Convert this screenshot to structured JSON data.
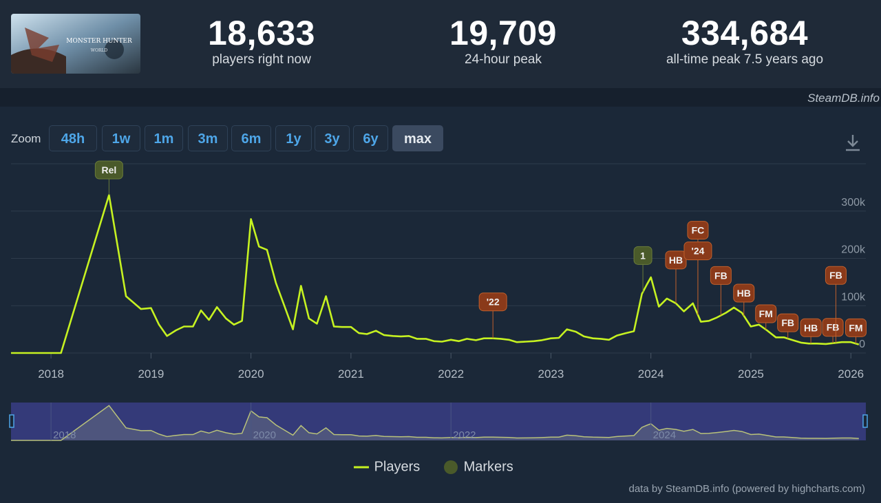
{
  "header": {
    "game_capsule": {
      "title_text": "MONSTER HUNTER",
      "subtitle_text": "WORLD"
    },
    "stats": [
      {
        "value": "18,633",
        "label": "players right now"
      },
      {
        "value": "19,709",
        "label": "24-hour peak"
      },
      {
        "value": "334,684",
        "label": "all-time peak 7.5 years ago"
      }
    ]
  },
  "credit_top": "SteamDB.info",
  "zoom": {
    "label": "Zoom",
    "buttons": [
      "48h",
      "1w",
      "1m",
      "3m",
      "6m",
      "1y",
      "3y",
      "6y",
      "max"
    ],
    "active": "max"
  },
  "download_icon": "download-icon",
  "colors": {
    "line": "#c6f221",
    "marker_green": "#4a5a2a",
    "marker_orange": "#8a3a1a",
    "navigator_fill": "#3a3f8a",
    "accent_blue": "#4ea6e8"
  },
  "chart_data": {
    "type": "line",
    "x_unit": "year",
    "y_unit": "players",
    "xlim": [
      2017.6,
      2026.15
    ],
    "ylim": [
      0,
      400000
    ],
    "y_ticks": [
      0,
      100000,
      200000,
      300000
    ],
    "y_tick_labels": [
      "0",
      "100k",
      "200k",
      "300k"
    ],
    "x_ticks": [
      2018,
      2019,
      2020,
      2021,
      2022,
      2023,
      2024,
      2025,
      2026
    ],
    "x_tick_labels": [
      "2018",
      "2019",
      "2020",
      "2021",
      "2022",
      "2023",
      "2024",
      "2025",
      "2026"
    ],
    "grid": true,
    "legend": "bottom-center",
    "series": [
      {
        "name": "Players",
        "x": [
          2017.6,
          2018.1,
          2018.58,
          2018.75,
          2018.9,
          2019.0,
          2019.08,
          2019.16,
          2019.25,
          2019.33,
          2019.42,
          2019.5,
          2019.58,
          2019.66,
          2019.75,
          2019.83,
          2019.91,
          2020.0,
          2020.08,
          2020.16,
          2020.25,
          2020.33,
          2020.42,
          2020.5,
          2020.58,
          2020.66,
          2020.75,
          2020.83,
          2020.91,
          2021.0,
          2021.08,
          2021.16,
          2021.25,
          2021.33,
          2021.42,
          2021.5,
          2021.58,
          2021.66,
          2021.75,
          2021.83,
          2021.91,
          2022.0,
          2022.08,
          2022.16,
          2022.25,
          2022.33,
          2022.42,
          2022.5,
          2022.58,
          2022.66,
          2022.75,
          2022.83,
          2022.91,
          2023.0,
          2023.08,
          2023.16,
          2023.25,
          2023.33,
          2023.42,
          2023.5,
          2023.58,
          2023.66,
          2023.75,
          2023.83,
          2023.91,
          2023.96,
          2024.0,
          2024.08,
          2024.16,
          2024.25,
          2024.33,
          2024.42,
          2024.5,
          2024.58,
          2024.66,
          2024.75,
          2024.83,
          2024.91,
          2025.0,
          2025.08,
          2025.16,
          2025.25,
          2025.33,
          2025.42,
          2025.5,
          2025.58,
          2025.66,
          2025.75,
          2025.83,
          2025.91,
          2026.0,
          2026.08
        ],
        "y": [
          0,
          0,
          334000,
          120000,
          93000,
          95000,
          60000,
          36000,
          48000,
          56000,
          56000,
          90000,
          70000,
          97000,
          73000,
          60000,
          68000,
          283000,
          225000,
          218000,
          148000,
          102000,
          50000,
          142000,
          73000,
          62000,
          120000,
          56000,
          55000,
          55000,
          42000,
          40000,
          47000,
          38000,
          36000,
          35000,
          36000,
          30000,
          30000,
          25000,
          24000,
          28000,
          25000,
          30000,
          27000,
          31000,
          31000,
          30000,
          28000,
          23000,
          24000,
          25000,
          27000,
          31000,
          32000,
          50000,
          45000,
          35000,
          31000,
          30000,
          28000,
          37000,
          42000,
          46000,
          125000,
          145000,
          160000,
          98000,
          115000,
          105000,
          88000,
          105000,
          66000,
          68000,
          75000,
          85000,
          96000,
          85000,
          56000,
          60000,
          48000,
          33000,
          33000,
          27000,
          22000,
          20000,
          20000,
          19000,
          21000,
          23000,
          23000,
          18000
        ]
      }
    ],
    "markers": [
      {
        "label": "Rel",
        "x": 2018.58,
        "color": "green"
      },
      {
        "label": "1",
        "x": 2023.92,
        "color": "green"
      },
      {
        "label": "'22",
        "x": 2022.42,
        "color": "orange"
      },
      {
        "label": "FC",
        "x": 2024.47,
        "color": "orange"
      },
      {
        "label": "HB",
        "x": 2024.25,
        "color": "orange"
      },
      {
        "label": "'24",
        "x": 2024.47,
        "color": "orange"
      },
      {
        "label": "FB",
        "x": 2024.7,
        "color": "orange"
      },
      {
        "label": "HB",
        "x": 2024.93,
        "color": "orange"
      },
      {
        "label": "FM",
        "x": 2025.15,
        "color": "orange"
      },
      {
        "label": "FB",
        "x": 2025.37,
        "color": "orange"
      },
      {
        "label": "HB",
        "x": 2025.6,
        "color": "orange"
      },
      {
        "label": "FB",
        "x": 2025.82,
        "color": "orange"
      },
      {
        "label": "FB",
        "x": 2025.85,
        "color": "orange"
      },
      {
        "label": "FM",
        "x": 2026.05,
        "color": "orange"
      }
    ],
    "navigator": {
      "x_tick_labels": [
        "2018",
        "2020",
        "2022",
        "2024"
      ]
    }
  },
  "legend_items": [
    {
      "name": "Players",
      "symbol": "line"
    },
    {
      "name": "Markers",
      "symbol": "circle"
    }
  ],
  "credit_bottom": "data by SteamDB.info (powered by highcharts.com)"
}
